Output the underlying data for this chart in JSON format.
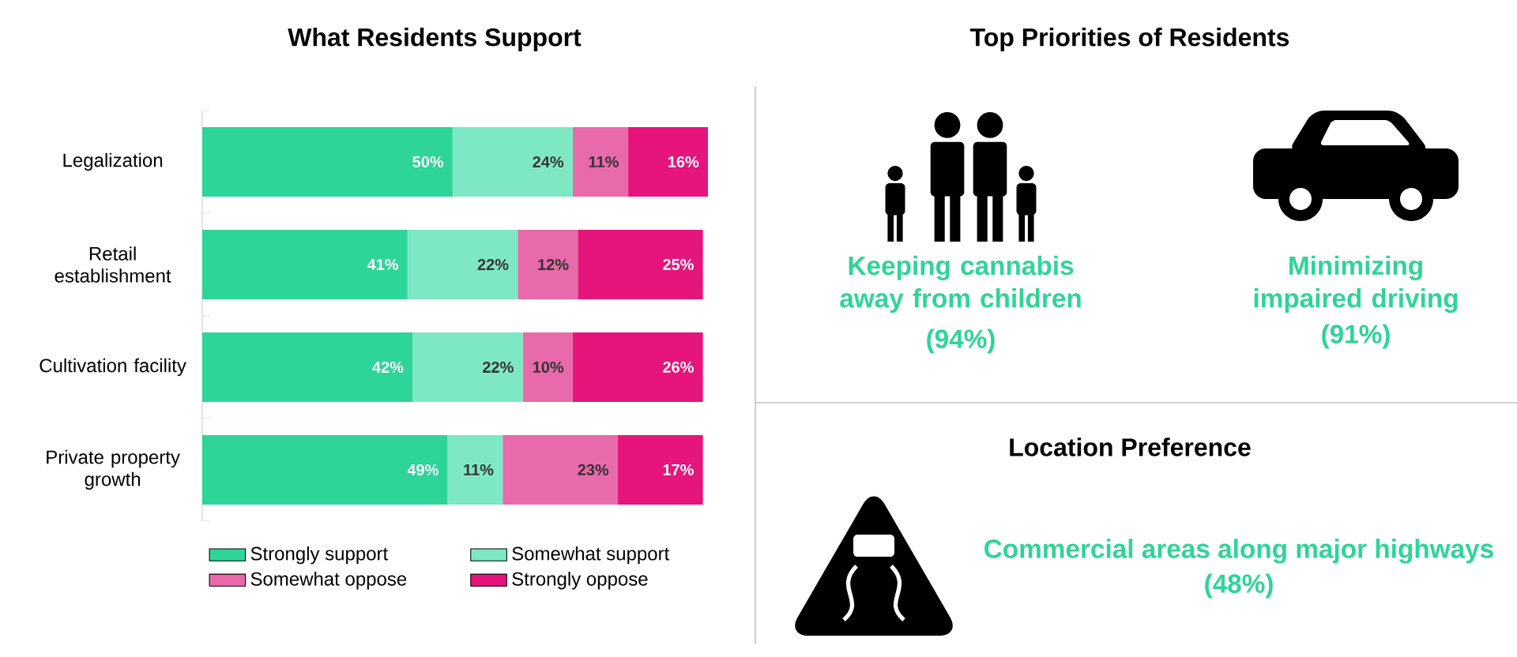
{
  "chart_data": [
    {
      "type": "bar",
      "orientation": "horizontal",
      "stacked": true,
      "title": "What Residents Support",
      "categories": [
        "Legalization",
        "Retail establishment",
        "Cultivation facility",
        "Private property growth"
      ],
      "legend": "bottom left",
      "series": [
        {
          "name": "Strongly support",
          "color": "#2ed598",
          "values": [
            50,
            41,
            42,
            49
          ],
          "value_labels": [
            "50%",
            "41%",
            "42%",
            "49%"
          ]
        },
        {
          "name": "Somewhat support",
          "color": "#7ee8c4",
          "values": [
            24,
            22,
            22,
            11
          ],
          "value_labels": [
            "24%",
            "22%",
            "22%",
            "11%"
          ]
        },
        {
          "name": "Somewhat oppose",
          "color": "#e86aaa",
          "values": [
            11,
            12,
            10,
            23
          ],
          "value_labels": [
            "11%",
            "12%",
            "10%",
            "23%"
          ]
        },
        {
          "name": "Strongly oppose",
          "color": "#e5157b",
          "values": [
            16,
            25,
            26,
            17
          ],
          "value_labels": [
            "16%",
            "25%",
            "26%",
            "17%"
          ]
        }
      ]
    },
    {
      "type": "other",
      "title": "Top Priorities of Residents",
      "annotations": [
        "Keeping cannabis away from children",
        "(94%)",
        "Minimizing impaired driving",
        "(91%)"
      ]
    },
    {
      "type": "other",
      "title": "Location Preference",
      "annotations": [
        "Commercial areas along major highways",
        "(48%)"
      ]
    }
  ]
}
